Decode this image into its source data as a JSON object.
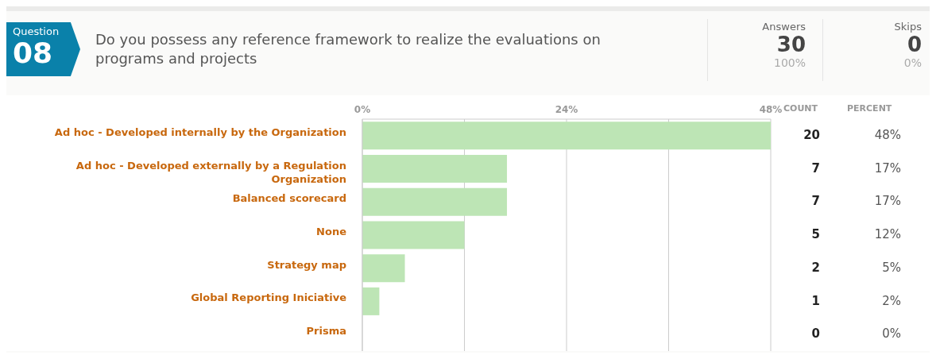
{
  "chart_data": {
    "type": "bar",
    "orientation": "horizontal",
    "title": "Do you possess any reference framework to realize the evaluations on programs and projects",
    "categories": [
      "Ad hoc - Developed internally by the Organization",
      "Ad hoc - Developed externally by a Regulation Organization",
      "Balanced scorecard",
      "None",
      "Strategy map",
      "Global Reporting Iniciative",
      "Prisma"
    ],
    "values": [
      48,
      17,
      17,
      12,
      5,
      2,
      0
    ],
    "color": "#bde5b5",
    "xlim": [
      0,
      48
    ],
    "xticks": [
      {
        "value": 0,
        "label": "0%"
      },
      {
        "value": 12,
        "label": null
      },
      {
        "value": 24,
        "label": "24%"
      },
      {
        "value": 36,
        "label": null
      },
      {
        "value": 48,
        "label": "48%"
      }
    ],
    "grid": "x",
    "annotations": [
      "Question",
      "08",
      "Answers",
      "30",
      "100%",
      "Skips",
      "0",
      "0%",
      "COUNT",
      "PERCENT",
      "20",
      "7",
      "7",
      "5",
      "2",
      "1",
      "0",
      "48%",
      "17%",
      "17%",
      "12%",
      "5%",
      "2%",
      "0%"
    ]
  }
}
